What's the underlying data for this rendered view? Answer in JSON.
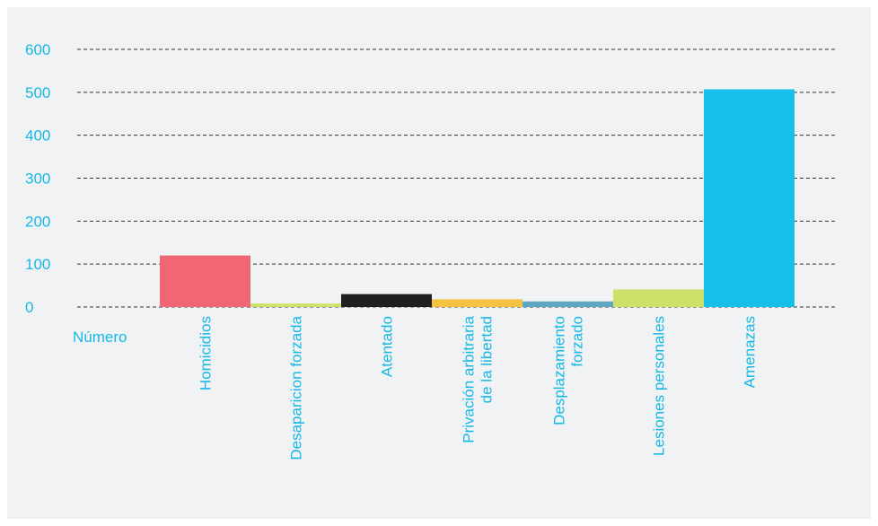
{
  "chart_data": {
    "type": "bar",
    "title": "",
    "xlabel": "Número",
    "ylabel": "",
    "ylim": [
      0,
      600
    ],
    "yticks": [
      "0",
      "100",
      "200",
      "300",
      "400",
      "500",
      "600"
    ],
    "grid": true,
    "categories": [
      [
        "Homicidios"
      ],
      [
        "Desaparicion forzada"
      ],
      [
        "Atentado"
      ],
      [
        "Privación arbitraria",
        "de la libertad"
      ],
      [
        "Desplazamiento",
        "forzado"
      ],
      [
        "Lesiones personales"
      ],
      [
        "Amenazas"
      ]
    ],
    "values": [
      120,
      8,
      30,
      18,
      13,
      41,
      507
    ],
    "colors": [
      "#f06674",
      "#cfe06a",
      "#221f20",
      "#f5c242",
      "#5ea8c4",
      "#cfe06a",
      "#16c0ea"
    ]
  }
}
